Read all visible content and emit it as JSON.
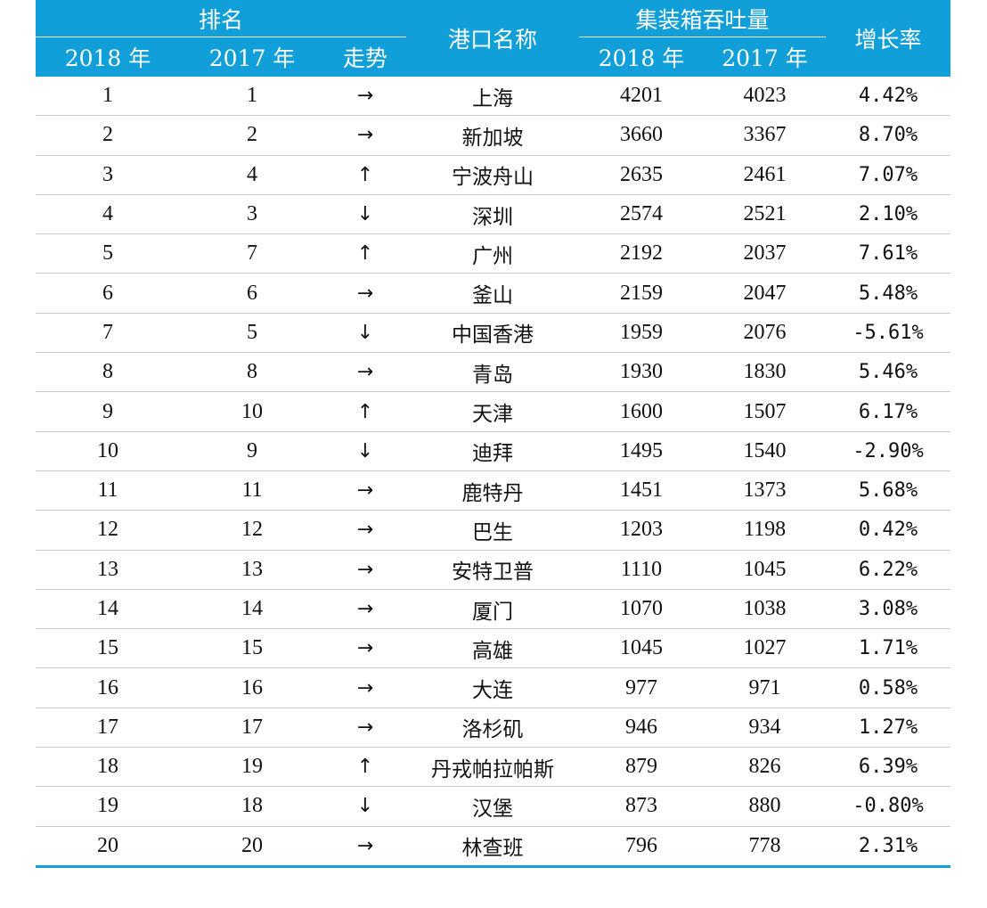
{
  "header": {
    "rank_group": "排名",
    "rank_2018": "2018 年",
    "rank_2017": "2017 年",
    "trend": "走势",
    "port_name": "港口名称",
    "throughput_group": "集装箱吞吐量",
    "tp_2018": "2018 年",
    "tp_2017": "2017 年",
    "growth": "增长率"
  },
  "colors": {
    "header_bg": "#109fd8",
    "rule": "#c9c9c9"
  },
  "rows": [
    {
      "r18": "1",
      "r17": "1",
      "trend": "→",
      "port": "上海",
      "t18": "4201",
      "t17": "4023",
      "growth": "4.42%"
    },
    {
      "r18": "2",
      "r17": "2",
      "trend": "→",
      "port": "新加坡",
      "t18": "3660",
      "t17": "3367",
      "growth": "8.70%"
    },
    {
      "r18": "3",
      "r17": "4",
      "trend": "↑",
      "port": "宁波舟山",
      "t18": "2635",
      "t17": "2461",
      "growth": "7.07%"
    },
    {
      "r18": "4",
      "r17": "3",
      "trend": "↓",
      "port": "深圳",
      "t18": "2574",
      "t17": "2521",
      "growth": "2.10%"
    },
    {
      "r18": "5",
      "r17": "7",
      "trend": "↑",
      "port": "广州",
      "t18": "2192",
      "t17": "2037",
      "growth": "7.61%"
    },
    {
      "r18": "6",
      "r17": "6",
      "trend": "→",
      "port": "釜山",
      "t18": "2159",
      "t17": "2047",
      "growth": "5.48%"
    },
    {
      "r18": "7",
      "r17": "5",
      "trend": "↓",
      "port": "中国香港",
      "t18": "1959",
      "t17": "2076",
      "growth": "-5.61%"
    },
    {
      "r18": "8",
      "r17": "8",
      "trend": "→",
      "port": "青岛",
      "t18": "1930",
      "t17": "1830",
      "growth": "5.46%"
    },
    {
      "r18": "9",
      "r17": "10",
      "trend": "↑",
      "port": "天津",
      "t18": "1600",
      "t17": "1507",
      "growth": "6.17%"
    },
    {
      "r18": "10",
      "r17": "9",
      "trend": "↓",
      "port": "迪拜",
      "t18": "1495",
      "t17": "1540",
      "growth": "-2.90%"
    },
    {
      "r18": "11",
      "r17": "11",
      "trend": "→",
      "port": "鹿特丹",
      "t18": "1451",
      "t17": "1373",
      "growth": "5.68%"
    },
    {
      "r18": "12",
      "r17": "12",
      "trend": "→",
      "port": "巴生",
      "t18": "1203",
      "t17": "1198",
      "growth": "0.42%"
    },
    {
      "r18": "13",
      "r17": "13",
      "trend": "→",
      "port": "安特卫普",
      "t18": "1110",
      "t17": "1045",
      "growth": "6.22%"
    },
    {
      "r18": "14",
      "r17": "14",
      "trend": "→",
      "port": "厦门",
      "t18": "1070",
      "t17": "1038",
      "growth": "3.08%"
    },
    {
      "r18": "15",
      "r17": "15",
      "trend": "→",
      "port": "高雄",
      "t18": "1045",
      "t17": "1027",
      "growth": "1.71%"
    },
    {
      "r18": "16",
      "r17": "16",
      "trend": "→",
      "port": "大连",
      "t18": "977",
      "t17": "971",
      "growth": "0.58%"
    },
    {
      "r18": "17",
      "r17": "17",
      "trend": "→",
      "port": "洛杉矶",
      "t18": "946",
      "t17": "934",
      "growth": "1.27%"
    },
    {
      "r18": "18",
      "r17": "19",
      "trend": "↑",
      "port": "丹戎帕拉帕斯",
      "t18": "879",
      "t17": "826",
      "growth": "6.39%"
    },
    {
      "r18": "19",
      "r17": "18",
      "trend": "↓",
      "port": "汉堡",
      "t18": "873",
      "t17": "880",
      "growth": "-0.80%"
    },
    {
      "r18": "20",
      "r17": "20",
      "trend": "→",
      "port": "林查班",
      "t18": "796",
      "t17": "778",
      "growth": "2.31%"
    }
  ]
}
